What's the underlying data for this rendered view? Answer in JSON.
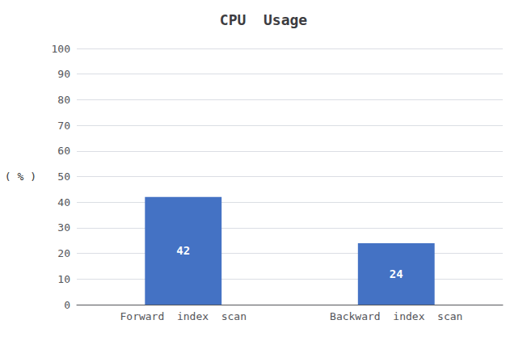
{
  "chart_data": {
    "type": "bar",
    "title": "CPU  Usage",
    "categories": [
      "Forward  index  scan",
      "Backward  index  scan"
    ],
    "values": [
      42,
      24
    ],
    "color": "#4472C4",
    "ylabel": "( % )",
    "ylim": [
      0,
      100
    ],
    "yticks": [
      0,
      10,
      20,
      30,
      40,
      50,
      60,
      70,
      80,
      90,
      100
    ],
    "grid": true,
    "data_labels": true
  }
}
